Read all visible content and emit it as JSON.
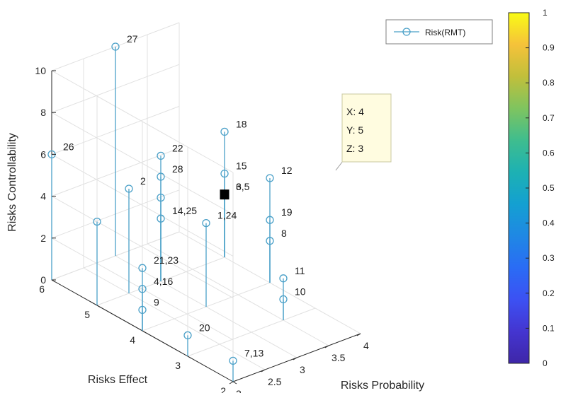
{
  "chart_data": {
    "type": "stem3",
    "xlabel": "Risks Probability",
    "ylabel": "Risks Effect",
    "zlabel": "Risks Controllability",
    "xlim": [
      2,
      4
    ],
    "ylim": [
      2,
      6
    ],
    "zlim": [
      0,
      10
    ],
    "xticks": [
      "2",
      "2.5",
      "3",
      "3.5",
      "4"
    ],
    "yticks": [
      "2",
      "3",
      "4",
      "5",
      "6"
    ],
    "zticks": [
      "0",
      "2",
      "4",
      "6",
      "8",
      "10"
    ],
    "grid": true,
    "legend": {
      "entries": [
        "Risk(RMT)"
      ],
      "placement": "top-right"
    },
    "series": [
      {
        "name": "Risk(RMT)",
        "color": "#4aa0c8",
        "points": [
          {
            "x": 2,
            "y": 6,
            "z": 6,
            "label": "26"
          },
          {
            "x": 2,
            "y": 5,
            "z": 4,
            "label": ""
          },
          {
            "x": 2,
            "y": 4,
            "z": 3,
            "label": "21,23"
          },
          {
            "x": 2,
            "y": 4,
            "z": 2,
            "label": "4,16"
          },
          {
            "x": 2,
            "y": 4,
            "z": 1,
            "label": "9"
          },
          {
            "x": 2,
            "y": 3,
            "z": 1,
            "label": "20"
          },
          {
            "x": 2,
            "y": 2,
            "z": 1,
            "label": "7,13"
          },
          {
            "x": 2.5,
            "y": 5,
            "z": 5,
            "label": "2"
          },
          {
            "x": 3,
            "y": 6,
            "z": 10,
            "label": "27"
          },
          {
            "x": 3,
            "y": 5,
            "z": 6,
            "label": "22"
          },
          {
            "x": 3,
            "y": 5,
            "z": 5,
            "label": "28"
          },
          {
            "x": 3,
            "y": 5,
            "z": 4,
            "label": ""
          },
          {
            "x": 3,
            "y": 5,
            "z": 3,
            "label": "14,25"
          },
          {
            "x": 3,
            "y": 4,
            "z": 4,
            "label": "1,24"
          },
          {
            "x": 4,
            "y": 5,
            "z": 3,
            "label": "6"
          },
          {
            "x": 3.5,
            "y": 3,
            "z": 2,
            "label": "11"
          },
          {
            "x": 3.5,
            "y": 3,
            "z": 1,
            "label": "10"
          },
          {
            "x": 4,
            "y": 5,
            "z": 6,
            "label": "18"
          },
          {
            "x": 4,
            "y": 5,
            "z": 4,
            "label": "15"
          },
          {
            "x": 4,
            "y": 5,
            "z": 3,
            "label": "3,5"
          },
          {
            "x": 4,
            "y": 4,
            "z": 5,
            "label": "12"
          },
          {
            "x": 4,
            "y": 4,
            "z": 3,
            "label": "19"
          },
          {
            "x": 4,
            "y": 4,
            "z": 2,
            "label": "8"
          }
        ]
      }
    ],
    "datatip": {
      "lines": [
        "X: 4",
        "Y: 5",
        "Z: 3"
      ],
      "x": 4,
      "y": 5,
      "z": 3
    },
    "colorbar": {
      "ticks": [
        "0",
        "0.1",
        "0.2",
        "0.3",
        "0.4",
        "0.5",
        "0.6",
        "0.7",
        "0.8",
        "0.9",
        "1"
      ],
      "colors": [
        "#3e26a8",
        "#4435d0",
        "#3c51f3",
        "#2a6cf5",
        "#1f88e4",
        "#14a0d1",
        "#1db1b3",
        "#3fbd8e",
        "#7fc45f",
        "#c1bf3b",
        "#f5c23a",
        "#f9fb15"
      ]
    },
    "colors": {
      "stem": "#4aa0c8",
      "marker": "#4aa0c8",
      "grid": "#e1e1e1",
      "axis": "#262626",
      "tip_bg": "#fffce0",
      "tip_border": "#c8c8a0"
    }
  }
}
